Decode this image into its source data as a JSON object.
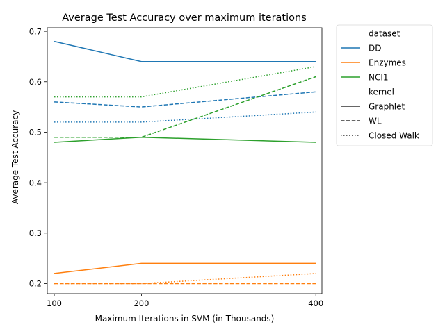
{
  "chart_data": {
    "type": "line",
    "title": "Average Test Accuracy over maximum iterations",
    "xlabel": "Maximum Iterations in SVM (in Thousands)",
    "ylabel": "Average Test Accuracy",
    "x": [
      100,
      200,
      400
    ],
    "x_ticks": [
      100,
      200,
      400
    ],
    "y_ticks": [
      0.2,
      0.3,
      0.4,
      0.5,
      0.6,
      0.7
    ],
    "xlim": [
      92,
      407
    ],
    "ylim": [
      0.18,
      0.707
    ],
    "grid": false,
    "legend_position": "outside-right",
    "legend": {
      "dataset_heading": "dataset",
      "kernel_heading": "kernel",
      "datasets": [
        {
          "name": "DD",
          "color": "#1f77b4"
        },
        {
          "name": "Enzymes",
          "color": "#ff7f0e"
        },
        {
          "name": "NCI1",
          "color": "#2ca02c"
        }
      ],
      "kernels": [
        {
          "name": "Graphlet",
          "dash": "solid"
        },
        {
          "name": "WL",
          "dash": "dashed"
        },
        {
          "name": "Closed Walk",
          "dash": "dotted"
        }
      ]
    },
    "series": [
      {
        "dataset": "DD",
        "kernel": "Graphlet",
        "values": [
          0.68,
          0.64,
          0.64
        ]
      },
      {
        "dataset": "DD",
        "kernel": "WL",
        "values": [
          0.56,
          0.55,
          0.58
        ]
      },
      {
        "dataset": "DD",
        "kernel": "Closed Walk",
        "values": [
          0.52,
          0.52,
          0.54
        ]
      },
      {
        "dataset": "Enzymes",
        "kernel": "Graphlet",
        "values": [
          0.22,
          0.24,
          0.24
        ]
      },
      {
        "dataset": "Enzymes",
        "kernel": "WL",
        "values": [
          0.2,
          0.2,
          0.2
        ]
      },
      {
        "dataset": "Enzymes",
        "kernel": "Closed Walk",
        "values": [
          0.2,
          0.2,
          0.22
        ]
      },
      {
        "dataset": "NCI1",
        "kernel": "Graphlet",
        "values": [
          0.48,
          0.49,
          0.48
        ]
      },
      {
        "dataset": "NCI1",
        "kernel": "WL",
        "values": [
          0.49,
          0.49,
          0.61
        ]
      },
      {
        "dataset": "NCI1",
        "kernel": "Closed Walk",
        "values": [
          0.57,
          0.57,
          0.63
        ]
      }
    ]
  }
}
